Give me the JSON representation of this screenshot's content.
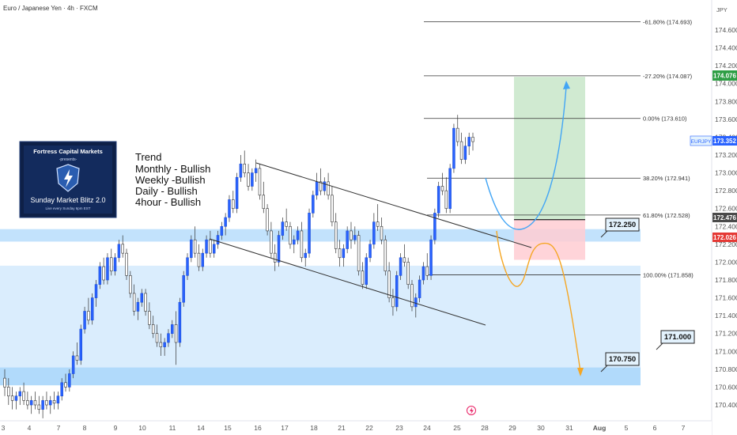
{
  "header": {
    "symbol_title": "Euro / Japanese Yen · 4h · FXCM",
    "currency": "JPY"
  },
  "colors": {
    "bull": "#2962ff",
    "bear": "#ffffff",
    "zone": "#bbdefb",
    "tp_zone": "#c8e6c9",
    "sl_zone": "#ffcdd2",
    "path_bull": "#42a5f5",
    "path_bear": "#f5a623"
  },
  "info_box": {
    "brand": "Fortress Capital Markets",
    "presents": "-presents-",
    "title": "Sunday Market Blitz 2.0",
    "subtitle": "Live every Sunday 6pm EST"
  },
  "trend_notes": {
    "heading": "Trend",
    "lines": [
      "Monthly - Bullish",
      "Weekly -Bullish",
      "Daily - Bullish",
      "4hour - Bullish"
    ]
  },
  "callouts": [
    "172.250",
    "171.000",
    "170.750"
  ],
  "price_tags": {
    "last": {
      "label": "EURJPY",
      "value": "173.352"
    },
    "tp": "174.076",
    "entry": "172.476",
    "sl": "172.026"
  },
  "chart_data": {
    "type": "candlestick",
    "ylim": [
      170.2,
      174.85
    ],
    "y_ticks": [
      "174.600",
      "174.400",
      "174.200",
      "174.000",
      "173.800",
      "173.600",
      "173.400",
      "173.200",
      "173.000",
      "172.800",
      "172.600",
      "172.400",
      "172.200",
      "172.000",
      "171.800",
      "171.600",
      "171.400",
      "171.200",
      "171.000",
      "170.800",
      "170.600",
      "170.400"
    ],
    "x_ticks": [
      "3",
      "4",
      "7",
      "8",
      "9",
      "10",
      "11",
      "14",
      "15",
      "16",
      "17",
      "18",
      "21",
      "22",
      "23",
      "24",
      "25",
      "28",
      "29",
      "30",
      "31",
      "Aug",
      "5",
      "6",
      "7"
    ],
    "fib_levels": [
      {
        "label": "-61.80% (174.693)",
        "price": 174.693
      },
      {
        "label": "-27.20% (174.087)",
        "price": 174.087
      },
      {
        "label": "0.00% (173.610)",
        "price": 173.61
      },
      {
        "label": "38.20% (172.941)",
        "price": 172.941
      },
      {
        "label": "61.80% (172.528)",
        "price": 172.528
      },
      {
        "label": "100.00% (171.858)",
        "price": 171.858
      }
    ],
    "zones": [
      {
        "from": 172.23,
        "to": 172.37
      },
      {
        "from": 170.62,
        "to": 171.96
      },
      {
        "from": 170.62,
        "to": 170.82
      }
    ],
    "position": {
      "entry": 172.476,
      "take_profit": 174.076,
      "stop_loss": 172.026
    },
    "candles": [
      [
        170.7,
        170.8,
        170.5,
        170.6
      ],
      [
        170.6,
        170.7,
        170.4,
        170.5
      ],
      [
        170.5,
        170.6,
        170.35,
        170.45
      ],
      [
        170.45,
        170.55,
        170.35,
        170.5
      ],
      [
        170.5,
        170.6,
        170.4,
        170.55
      ],
      [
        170.55,
        170.65,
        170.4,
        170.45
      ],
      [
        170.45,
        170.55,
        170.35,
        170.4
      ],
      [
        170.4,
        170.5,
        170.3,
        170.45
      ],
      [
        170.45,
        170.55,
        170.35,
        170.4
      ],
      [
        170.4,
        170.5,
        170.3,
        170.35
      ],
      [
        170.35,
        170.5,
        170.25,
        170.45
      ],
      [
        170.45,
        170.55,
        170.35,
        170.4
      ],
      [
        170.4,
        170.5,
        170.3,
        170.45
      ],
      [
        170.45,
        170.55,
        170.35,
        170.42
      ],
      [
        170.42,
        170.55,
        170.35,
        170.5
      ],
      [
        170.5,
        170.7,
        170.45,
        170.65
      ],
      [
        170.65,
        170.75,
        170.55,
        170.6
      ],
      [
        170.6,
        170.8,
        170.55,
        170.75
      ],
      [
        170.75,
        171.0,
        170.7,
        170.95
      ],
      [
        170.95,
        171.1,
        170.85,
        170.9
      ],
      [
        170.9,
        171.3,
        170.85,
        171.25
      ],
      [
        171.25,
        171.5,
        171.2,
        171.45
      ],
      [
        171.45,
        171.6,
        171.3,
        171.35
      ],
      [
        171.35,
        171.65,
        171.3,
        171.6
      ],
      [
        171.6,
        171.8,
        171.5,
        171.75
      ],
      [
        171.75,
        172.0,
        171.7,
        171.95
      ],
      [
        171.95,
        172.05,
        171.75,
        171.8
      ],
      [
        171.8,
        172.1,
        171.75,
        172.05
      ],
      [
        172.05,
        172.15,
        171.85,
        171.9
      ],
      [
        171.9,
        172.1,
        171.85,
        172.05
      ],
      [
        172.05,
        172.25,
        172.0,
        172.2
      ],
      [
        172.2,
        172.3,
        172.05,
        172.1
      ],
      [
        172.1,
        172.15,
        171.8,
        171.85
      ],
      [
        171.85,
        171.9,
        171.6,
        171.65
      ],
      [
        171.65,
        171.75,
        171.4,
        171.45
      ],
      [
        171.45,
        171.6,
        171.35,
        171.55
      ],
      [
        171.55,
        171.7,
        171.5,
        171.65
      ],
      [
        171.65,
        171.7,
        171.4,
        171.45
      ],
      [
        171.45,
        171.55,
        171.25,
        171.3
      ],
      [
        171.3,
        171.4,
        171.15,
        171.2
      ],
      [
        171.2,
        171.3,
        171.05,
        171.1
      ],
      [
        171.1,
        171.2,
        170.95,
        171.05
      ],
      [
        171.05,
        171.15,
        170.95,
        171.1
      ],
      [
        171.1,
        171.25,
        171.05,
        171.2
      ],
      [
        171.2,
        171.35,
        171.15,
        171.3
      ],
      [
        171.3,
        171.45,
        170.85,
        171.1
      ],
      [
        171.1,
        171.6,
        171.05,
        171.55
      ],
      [
        171.55,
        171.9,
        171.5,
        171.85
      ],
      [
        171.85,
        172.1,
        171.8,
        172.05
      ],
      [
        172.05,
        172.3,
        172.0,
        172.25
      ],
      [
        172.25,
        172.4,
        172.05,
        172.1
      ],
      [
        172.1,
        172.2,
        171.9,
        171.95
      ],
      [
        171.95,
        172.15,
        171.9,
        172.1
      ],
      [
        172.1,
        172.3,
        172.05,
        172.25
      ],
      [
        172.25,
        172.35,
        172.05,
        172.1
      ],
      [
        172.1,
        172.25,
        172.05,
        172.2
      ],
      [
        172.2,
        172.35,
        172.15,
        172.3
      ],
      [
        172.3,
        172.45,
        172.25,
        172.4
      ],
      [
        172.4,
        172.55,
        172.3,
        172.5
      ],
      [
        172.5,
        172.75,
        172.45,
        172.7
      ],
      [
        172.7,
        172.8,
        172.55,
        172.6
      ],
      [
        172.6,
        173.0,
        172.55,
        172.95
      ],
      [
        172.95,
        173.2,
        172.9,
        173.1
      ],
      [
        173.1,
        173.25,
        172.95,
        173.0
      ],
      [
        173.0,
        173.1,
        172.8,
        172.85
      ],
      [
        172.85,
        173.05,
        172.8,
        173.0
      ],
      [
        173.0,
        173.15,
        172.9,
        173.05
      ],
      [
        173.05,
        173.1,
        172.7,
        172.75
      ],
      [
        172.75,
        172.9,
        172.55,
        172.6
      ],
      [
        172.6,
        172.65,
        172.3,
        172.35
      ],
      [
        172.35,
        172.45,
        172.05,
        172.1
      ],
      [
        172.1,
        172.2,
        171.9,
        172.0
      ],
      [
        172.0,
        172.35,
        171.95,
        172.3
      ],
      [
        172.3,
        172.5,
        172.25,
        172.45
      ],
      [
        172.45,
        172.6,
        172.35,
        172.4
      ],
      [
        172.4,
        172.45,
        172.15,
        172.2
      ],
      [
        172.2,
        172.3,
        172.1,
        172.25
      ],
      [
        172.25,
        172.4,
        172.2,
        172.35
      ],
      [
        172.35,
        172.45,
        172.0,
        172.05
      ],
      [
        172.05,
        172.15,
        171.95,
        172.1
      ],
      [
        172.1,
        172.6,
        172.05,
        172.55
      ],
      [
        172.55,
        172.8,
        172.5,
        172.75
      ],
      [
        172.75,
        173.0,
        172.7,
        172.9
      ],
      [
        172.9,
        173.05,
        172.75,
        172.8
      ],
      [
        172.8,
        172.95,
        172.75,
        172.9
      ],
      [
        172.9,
        173.0,
        172.7,
        172.75
      ],
      [
        172.75,
        172.85,
        172.4,
        172.45
      ],
      [
        172.45,
        172.55,
        172.1,
        172.15
      ],
      [
        172.15,
        172.25,
        171.95,
        172.05
      ],
      [
        172.05,
        172.2,
        171.95,
        172.15
      ],
      [
        172.15,
        172.4,
        172.1,
        172.35
      ],
      [
        172.35,
        172.45,
        172.15,
        172.25
      ],
      [
        172.25,
        172.4,
        172.2,
        172.3
      ],
      [
        172.3,
        172.35,
        171.85,
        171.9
      ],
      [
        171.9,
        172.0,
        171.7,
        171.75
      ],
      [
        171.75,
        172.1,
        171.7,
        172.05
      ],
      [
        172.05,
        172.25,
        172.0,
        172.2
      ],
      [
        172.2,
        172.55,
        172.15,
        172.45
      ],
      [
        172.45,
        172.65,
        172.35,
        172.4
      ],
      [
        172.4,
        172.5,
        172.2,
        172.25
      ],
      [
        172.25,
        172.3,
        171.85,
        171.9
      ],
      [
        171.9,
        172.0,
        171.55,
        171.6
      ],
      [
        171.6,
        171.7,
        171.4,
        171.5
      ],
      [
        171.5,
        171.9,
        171.45,
        171.85
      ],
      [
        171.85,
        172.1,
        171.8,
        172.05
      ],
      [
        172.05,
        172.2,
        171.95,
        172.0
      ],
      [
        172.0,
        172.05,
        171.7,
        171.75
      ],
      [
        171.75,
        171.8,
        171.45,
        171.5
      ],
      [
        171.5,
        171.65,
        171.38,
        171.6
      ],
      [
        171.6,
        171.85,
        171.55,
        171.8
      ],
      [
        171.8,
        172.0,
        171.75,
        171.95
      ],
      [
        171.95,
        172.1,
        171.8,
        171.85
      ],
      [
        171.85,
        172.3,
        171.8,
        172.25
      ],
      [
        172.25,
        172.6,
        172.2,
        172.55
      ],
      [
        172.55,
        172.9,
        172.5,
        172.85
      ],
      [
        172.85,
        173.0,
        172.75,
        172.8
      ],
      [
        172.8,
        172.95,
        172.55,
        172.6
      ],
      [
        172.6,
        173.1,
        172.55,
        173.05
      ],
      [
        173.05,
        173.55,
        173.0,
        173.5
      ],
      [
        173.5,
        173.65,
        173.3,
        173.35
      ],
      [
        173.35,
        173.45,
        173.1,
        173.15
      ],
      [
        173.15,
        173.4,
        173.1,
        173.3
      ],
      [
        173.3,
        173.45,
        173.2,
        173.4
      ],
      [
        173.4,
        173.45,
        173.25,
        173.35
      ]
    ]
  }
}
